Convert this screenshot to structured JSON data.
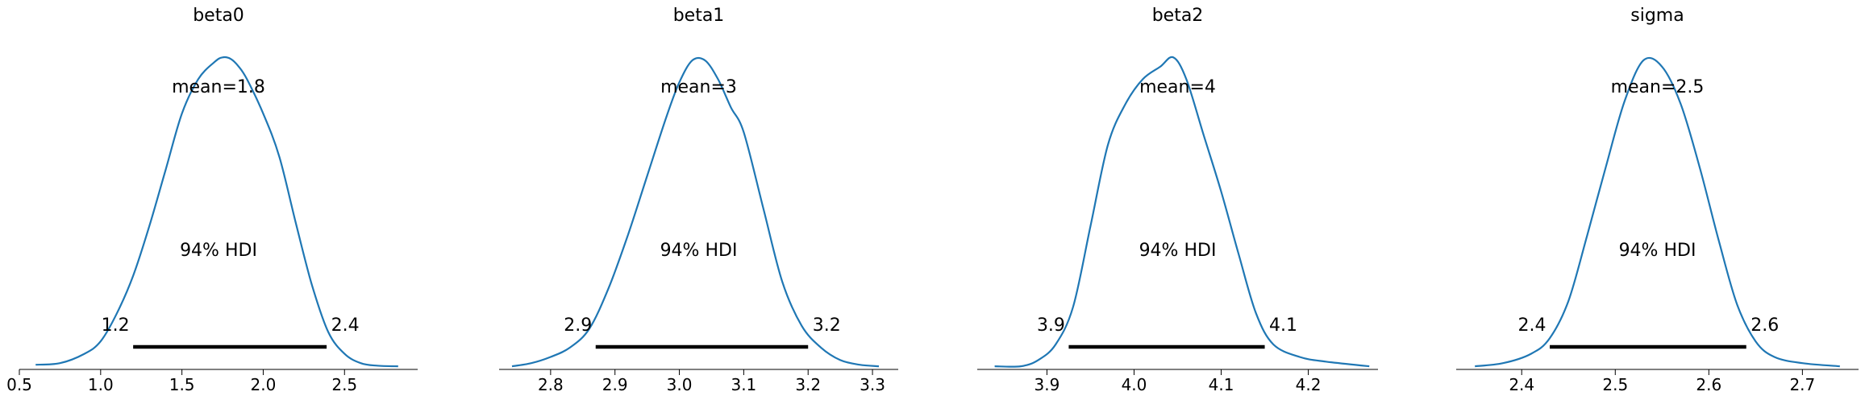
{
  "chart_data": [
    {
      "type": "line",
      "title": "beta0",
      "mean_label": "mean=1.8",
      "hdi_label": "94% HDI",
      "hdi_low_label": "1.2",
      "hdi_high_label": "2.4",
      "hdi": [
        1.2,
        2.39
      ],
      "xlim": [
        0.5,
        2.95
      ],
      "ylim": [
        0,
        1.06
      ],
      "xticks": [
        0.5,
        1.0,
        1.5,
        2.0,
        2.5
      ],
      "xtick_labels": [
        "0.5",
        "1.0",
        "1.5",
        "2.0",
        "2.5"
      ],
      "x": [
        0.6,
        0.75,
        0.9,
        1.0,
        1.1,
        1.2,
        1.3,
        1.4,
        1.5,
        1.6,
        1.7,
        1.75,
        1.8,
        1.85,
        1.9,
        2.0,
        2.1,
        2.2,
        2.3,
        2.4,
        2.5,
        2.6,
        2.7,
        2.83
      ],
      "y": [
        0.015,
        0.02,
        0.05,
        0.09,
        0.18,
        0.3,
        0.46,
        0.64,
        0.82,
        0.93,
        0.985,
        1.0,
        0.995,
        0.97,
        0.93,
        0.82,
        0.68,
        0.47,
        0.27,
        0.12,
        0.05,
        0.02,
        0.012,
        0.01
      ]
    },
    {
      "type": "line",
      "title": "beta1",
      "mean_label": "mean=3",
      "hdi_label": "94% HDI",
      "hdi_low_label": "2.9",
      "hdi_high_label": "3.2",
      "hdi": [
        2.87,
        3.2
      ],
      "xlim": [
        2.72,
        3.34
      ],
      "ylim": [
        0,
        1.06
      ],
      "xticks": [
        2.8,
        2.9,
        3.0,
        3.1,
        3.2,
        3.3
      ],
      "xtick_labels": [
        "2.8",
        "2.9",
        "3.0",
        "3.1",
        "3.2",
        "3.3"
      ],
      "x": [
        2.74,
        2.77,
        2.8,
        2.83,
        2.86,
        2.89,
        2.92,
        2.95,
        2.98,
        3.0,
        3.02,
        3.04,
        3.06,
        3.08,
        3.1,
        3.13,
        3.16,
        3.19,
        3.22,
        3.25,
        3.28,
        3.31
      ],
      "y": [
        0.01,
        0.02,
        0.04,
        0.07,
        0.13,
        0.26,
        0.43,
        0.62,
        0.81,
        0.92,
        0.99,
        0.99,
        0.93,
        0.84,
        0.76,
        0.52,
        0.28,
        0.14,
        0.07,
        0.03,
        0.015,
        0.01
      ]
    },
    {
      "type": "line",
      "title": "beta2",
      "mean_label": "mean=4",
      "hdi_label": "94% HDI",
      "hdi_low_label": "3.9",
      "hdi_high_label": "4.1",
      "hdi": [
        3.925,
        4.15
      ],
      "xlim": [
        3.82,
        4.28
      ],
      "ylim": [
        0,
        1.06
      ],
      "xticks": [
        3.9,
        4.0,
        4.1,
        4.2
      ],
      "xtick_labels": [
        "3.9",
        "4.0",
        "4.1",
        "4.2"
      ],
      "x": [
        3.84,
        3.87,
        3.89,
        3.91,
        3.93,
        3.95,
        3.97,
        3.99,
        4.01,
        4.03,
        4.045,
        4.06,
        4.08,
        4.1,
        4.12,
        4.14,
        4.16,
        4.19,
        4.22,
        4.27
      ],
      "y": [
        0.01,
        0.01,
        0.03,
        0.08,
        0.2,
        0.46,
        0.72,
        0.85,
        0.93,
        0.97,
        1.0,
        0.93,
        0.75,
        0.57,
        0.37,
        0.18,
        0.08,
        0.04,
        0.025,
        0.01
      ]
    },
    {
      "type": "line",
      "title": "sigma",
      "mean_label": "mean=2.5",
      "hdi_label": "94% HDI",
      "hdi_low_label": "2.4",
      "hdi_high_label": "2.6",
      "hdi": [
        2.43,
        2.64
      ],
      "xlim": [
        2.33,
        2.76
      ],
      "ylim": [
        0,
        1.06
      ],
      "xticks": [
        2.4,
        2.5,
        2.6,
        2.7
      ],
      "xtick_labels": [
        "2.4",
        "2.5",
        "2.6",
        "2.7"
      ],
      "x": [
        2.35,
        2.38,
        2.41,
        2.43,
        2.45,
        2.47,
        2.49,
        2.51,
        2.53,
        2.55,
        2.57,
        2.59,
        2.61,
        2.63,
        2.65,
        2.67,
        2.7,
        2.74
      ],
      "y": [
        0.01,
        0.02,
        0.05,
        0.1,
        0.22,
        0.43,
        0.65,
        0.86,
        0.99,
        0.97,
        0.85,
        0.65,
        0.42,
        0.21,
        0.09,
        0.04,
        0.02,
        0.01
      ]
    }
  ]
}
